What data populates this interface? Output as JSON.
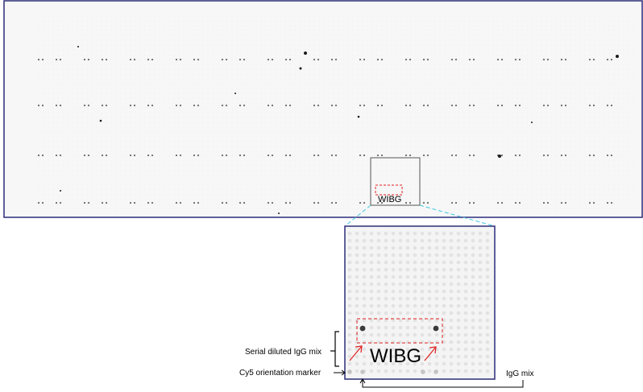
{
  "top_panel": {
    "inset_label": "WIBG"
  },
  "zoom_panel": {
    "inset_label": "WIBG",
    "annotations": {
      "serial_diluted": "Serial diluted IgG mix",
      "cy5_marker": "Cy5 orientation marker",
      "igg_mix": "IgG mix"
    }
  },
  "colors": {
    "frame": "#2c2c7a",
    "highlight": "#e02020",
    "connector": "#40c8e0",
    "spot": "#dcdcdc",
    "spot_dark": "#3a3a3a"
  }
}
